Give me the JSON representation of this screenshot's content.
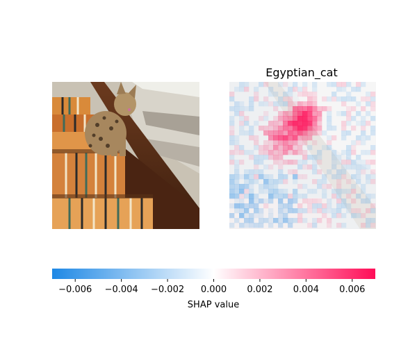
{
  "chart_data": [
    {
      "type": "heatmap",
      "panel": "input-image",
      "title": "",
      "description_hidden": true
    },
    {
      "type": "heatmap",
      "panel": "shap-overlay",
      "title": "Egyptian_cat",
      "colorbar": {
        "label": "SHAP value",
        "range": [
          -0.007,
          0.007
        ],
        "ticks": [
          -0.006,
          -0.004,
          -0.002,
          0.0,
          0.002,
          0.004,
          0.006
        ],
        "tick_labels": [
          "−0.006",
          "−0.004",
          "−0.002",
          "0.000",
          "0.002",
          "0.004",
          "0.006"
        ],
        "colors": {
          "negative": "#1e88e5",
          "zero": "#ffffff",
          "positive": "#ff0d57"
        }
      }
    }
  ]
}
